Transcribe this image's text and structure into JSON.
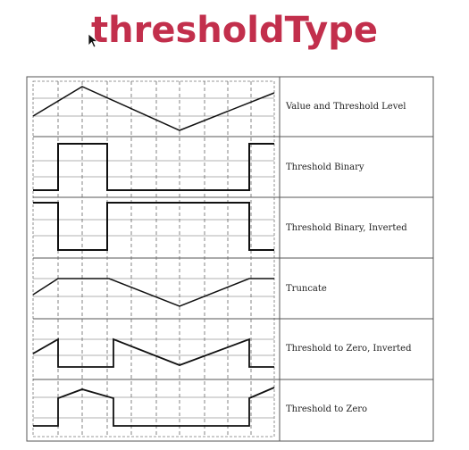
{
  "title": "thresholdType",
  "rows": [
    {
      "label": "Value and Threshold Level"
    },
    {
      "label": "Threshold Binary"
    },
    {
      "label": "Threshold Binary, Inverted"
    },
    {
      "label": "Truncate"
    },
    {
      "label": "Threshold to Zero, Inverted"
    },
    {
      "label": "Threshold to Zero"
    }
  ],
  "icons": {
    "cursor": "mouse-pointer-icon"
  }
}
